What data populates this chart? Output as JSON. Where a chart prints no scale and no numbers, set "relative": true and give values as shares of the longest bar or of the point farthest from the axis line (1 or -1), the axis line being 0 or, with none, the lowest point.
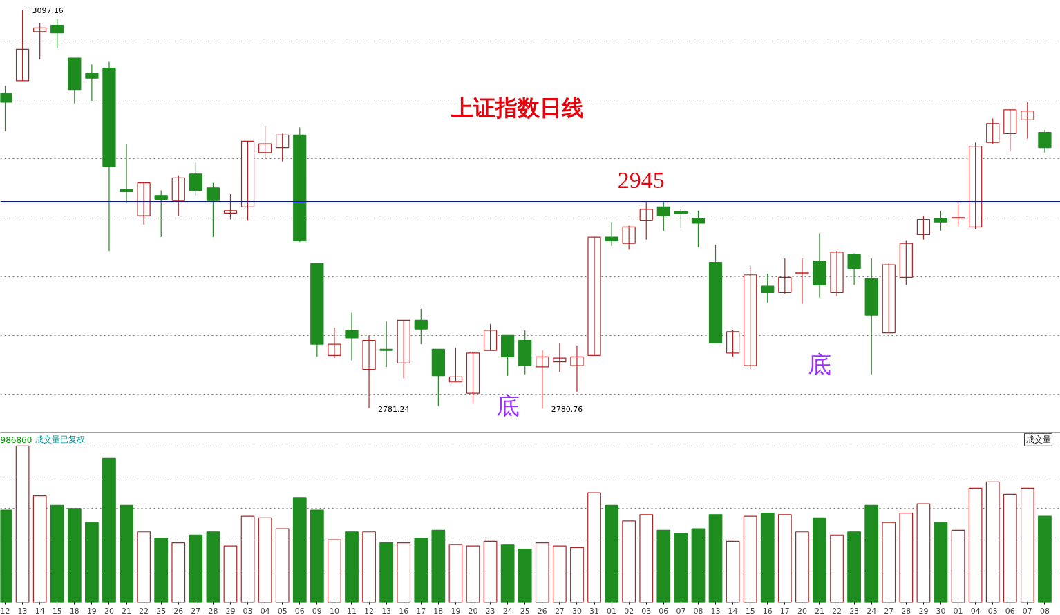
{
  "chart_data": [
    {
      "type": "candlestick",
      "title": "上证指数日线",
      "categories": [
        "12",
        "13",
        "14",
        "15",
        "18",
        "19",
        "20",
        "21",
        "22",
        "25",
        "26",
        "27",
        "28",
        "29",
        "03",
        "04",
        "05",
        "06",
        "09",
        "10",
        "11",
        "12",
        "13",
        "16",
        "17",
        "18",
        "19",
        "20",
        "23",
        "24",
        "25",
        "26",
        "27",
        "30",
        "31",
        "01",
        "02",
        "03",
        "06",
        "07",
        "08",
        "13",
        "14",
        "15",
        "16",
        "17",
        "20",
        "21",
        "22",
        "23",
        "24",
        "27",
        "28",
        "29",
        "30",
        "01",
        "04",
        "05",
        "06",
        "07",
        "08"
      ],
      "ohlc": [
        [
          3031,
          3037,
          3001,
          3024
        ],
        [
          3041,
          3097.16,
          3041,
          3066
        ],
        [
          3080,
          3087,
          3058,
          3083
        ],
        [
          3085,
          3090,
          3067,
          3079
        ],
        [
          3059,
          3059,
          3023,
          3034
        ],
        [
          3047,
          3054,
          3025,
          3043
        ],
        [
          3051,
          3056,
          2906,
          2973
        ],
        [
          2955,
          2991,
          2944,
          2953
        ],
        [
          2934,
          2960,
          2927,
          2960
        ],
        [
          2950,
          2954,
          2917,
          2947
        ],
        [
          2946,
          2966,
          2934,
          2964
        ],
        [
          2967,
          2976,
          2950,
          2954
        ],
        [
          2956,
          2960,
          2917,
          2946
        ],
        [
          2936,
          2951,
          2931,
          2938
        ],
        [
          2941,
          2993,
          2930,
          2993
        ],
        [
          2984,
          3005,
          2979,
          2991
        ],
        [
          2988,
          2999,
          2977,
          2998
        ],
        [
          2998,
          3004,
          2913,
          2914
        ],
        [
          2896,
          2896,
          2822,
          2832
        ],
        [
          2823,
          2845,
          2821,
          2832
        ],
        [
          2843,
          2857,
          2819,
          2837
        ],
        [
          2812,
          2839,
          2781.24,
          2835
        ],
        [
          2828,
          2850,
          2814,
          2827
        ],
        [
          2817,
          2851,
          2805,
          2851
        ],
        [
          2851,
          2860,
          2832,
          2844
        ],
        [
          2828,
          2828,
          2783,
          2807
        ],
        [
          2802,
          2829,
          2802,
          2806
        ],
        [
          2793,
          2826,
          2785,
          2825
        ],
        [
          2827,
          2848,
          2827,
          2843
        ],
        [
          2839,
          2839,
          2807,
          2822
        ],
        [
          2835,
          2843,
          2808,
          2815
        ],
        [
          2814,
          2827,
          2780.76,
          2822
        ],
        [
          2818,
          2833,
          2810,
          2821
        ],
        [
          2815,
          2831,
          2794,
          2822
        ],
        [
          2823,
          2917,
          2823,
          2917
        ],
        [
          2917,
          2929,
          2910,
          2914
        ],
        [
          2912,
          2926,
          2907,
          2925
        ],
        [
          2930,
          2945,
          2915,
          2939
        ],
        [
          2941,
          2945,
          2922,
          2934
        ],
        [
          2937,
          2939,
          2924,
          2936
        ],
        [
          2932,
          2938,
          2909,
          2928
        ],
        [
          2897,
          2911,
          2833,
          2833
        ],
        [
          2825,
          2843,
          2822,
          2842
        ],
        [
          2815,
          2894,
          2812,
          2887
        ],
        [
          2878,
          2888,
          2865,
          2873
        ],
        [
          2873,
          2900,
          2872,
          2885
        ],
        [
          2888,
          2900,
          2864,
          2889
        ],
        [
          2898,
          2920,
          2869,
          2879
        ],
        [
          2873,
          2906,
          2870,
          2905
        ],
        [
          2903,
          2904,
          2879,
          2892
        ],
        [
          2884,
          2900,
          2808,
          2855
        ],
        [
          2841,
          2896,
          2841,
          2895
        ],
        [
          2885,
          2914,
          2879,
          2912
        ],
        [
          2919,
          2934,
          2915,
          2931
        ],
        [
          2932,
          2938,
          2922,
          2929
        ],
        [
          2932,
          2945,
          2926,
          2932.5
        ],
        [
          2925,
          2992,
          2923,
          2989
        ],
        [
          2992,
          3011,
          2991,
          3007
        ],
        [
          2999,
          3018,
          2985,
          3018
        ],
        [
          3010,
          3024,
          2995,
          3017
        ],
        [
          3000,
          3002,
          2984,
          2988
        ]
      ],
      "colors": [
        "#1e8c1e",
        "#b22222",
        "#b22222",
        "#1e8c1e",
        "#1e8c1e",
        "#1e8c1e",
        "#1e8c1e",
        "#1e8c1e",
        "#b22222",
        "#1e8c1e",
        "#b22222",
        "#1e8c1e",
        "#1e8c1e",
        "#b22222",
        "#b22222",
        "#b22222",
        "#b22222",
        "#1e8c1e",
        "#1e8c1e",
        "#b22222",
        "#1e8c1e",
        "#b22222",
        "#1e8c1e",
        "#b22222",
        "#1e8c1e",
        "#1e8c1e",
        "#b22222",
        "#b22222",
        "#b22222",
        "#1e8c1e",
        "#1e8c1e",
        "#b22222",
        "#b22222",
        "#b22222",
        "#b22222",
        "#1e8c1e",
        "#b22222",
        "#b22222",
        "#1e8c1e",
        "#1e8c1e",
        "#1e8c1e",
        "#1e8c1e",
        "#b22222",
        "#b22222",
        "#1e8c1e",
        "#b22222",
        "#b22222",
        "#1e8c1e",
        "#b22222",
        "#1e8c1e",
        "#1e8c1e",
        "#b22222",
        "#b22222",
        "#b22222",
        "#1e8c1e",
        "#b22222",
        "#b22222",
        "#b22222",
        "#b22222",
        "#b22222",
        "#1e8c1e"
      ],
      "ref_lines": [
        {
          "axis": "y",
          "value": 2945,
          "label": "2945",
          "color": "#0000ff"
        }
      ],
      "annotations": [
        {
          "text": "3097.16",
          "x": "13",
          "y": 3097.16
        },
        "2781.24",
        "2780.76",
        "底",
        "底"
      ],
      "grid": "y",
      "tick_labels": false
    },
    {
      "type": "bar",
      "relative": true,
      "categories": [
        "12",
        "13",
        "14",
        "15",
        "18",
        "19",
        "20",
        "21",
        "22",
        "25",
        "26",
        "27",
        "28",
        "29",
        "03",
        "04",
        "05",
        "06",
        "09",
        "10",
        "11",
        "12",
        "13",
        "16",
        "17",
        "18",
        "19",
        "20",
        "23",
        "24",
        "25",
        "26",
        "27",
        "30",
        "31",
        "01",
        "02",
        "03",
        "06",
        "07",
        "08",
        "13",
        "14",
        "15",
        "16",
        "17",
        "20",
        "21",
        "22",
        "23",
        "24",
        "27",
        "28",
        "29",
        "30",
        "01",
        "04",
        "05",
        "06",
        "07",
        "08"
      ],
      "values": [
        0.59,
        1,
        0.68,
        0.62,
        0.6,
        0.51,
        0.92,
        0.62,
        0.45,
        0.41,
        0.38,
        0.43,
        0.45,
        0.36,
        0.55,
        0.54,
        0.47,
        0.67,
        0.59,
        0.4,
        0.45,
        0.45,
        0.38,
        0.38,
        0.41,
        0.46,
        0.37,
        0.36,
        0.39,
        0.37,
        0.34,
        0.38,
        0.36,
        0.35,
        0.7,
        0.62,
        0.52,
        0.56,
        0.46,
        0.44,
        0.47,
        0.56,
        0.39,
        0.55,
        0.57,
        0.56,
        0.45,
        0.54,
        0.43,
        0.45,
        0.62,
        0.51,
        0.57,
        0.63,
        0.51,
        0.46,
        0.73,
        0.77,
        0.69,
        0.73,
        0.55
      ],
      "colors": [
        "#1e8c1e",
        "#b22222",
        "#b22222",
        "#1e8c1e",
        "#1e8c1e",
        "#1e8c1e",
        "#1e8c1e",
        "#1e8c1e",
        "#b22222",
        "#1e8c1e",
        "#b22222",
        "#1e8c1e",
        "#1e8c1e",
        "#b22222",
        "#b22222",
        "#b22222",
        "#b22222",
        "#1e8c1e",
        "#1e8c1e",
        "#b22222",
        "#1e8c1e",
        "#b22222",
        "#1e8c1e",
        "#b22222",
        "#1e8c1e",
        "#1e8c1e",
        "#b22222",
        "#b22222",
        "#b22222",
        "#1e8c1e",
        "#1e8c1e",
        "#b22222",
        "#b22222",
        "#b22222",
        "#b22222",
        "#1e8c1e",
        "#b22222",
        "#b22222",
        "#1e8c1e",
        "#1e8c1e",
        "#1e8c1e",
        "#1e8c1e",
        "#b22222",
        "#b22222",
        "#1e8c1e",
        "#b22222",
        "#b22222",
        "#1e8c1e",
        "#b22222",
        "#1e8c1e",
        "#1e8c1e",
        "#b22222",
        "#b22222",
        "#b22222",
        "#1e8c1e",
        "#b22222",
        "#b22222",
        "#b22222",
        "#b22222",
        "#b22222",
        "#1e8c1e"
      ],
      "annotations": [
        "986860",
        "成交量已复权",
        "成交量"
      ],
      "grid": "y",
      "tick_labels": "x"
    }
  ]
}
